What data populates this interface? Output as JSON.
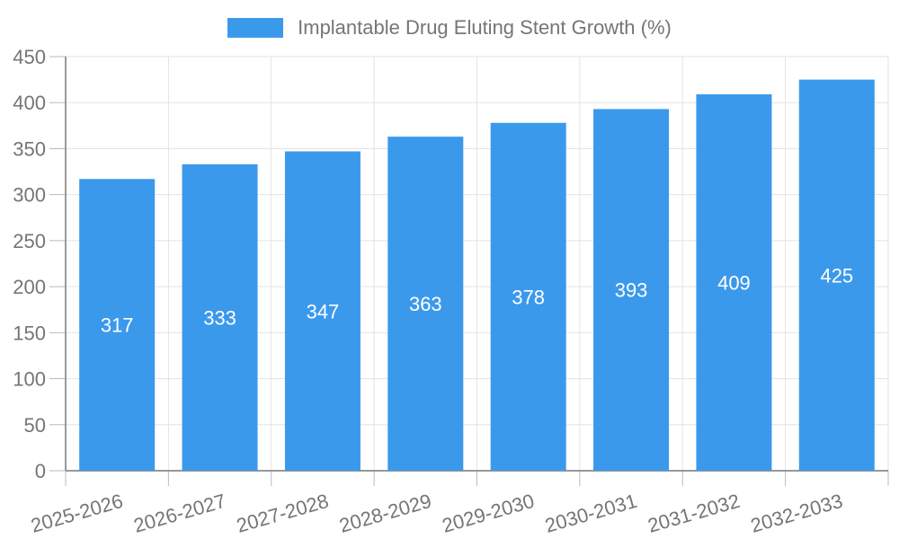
{
  "legend": {
    "label": "Implantable Drug Eluting Stent Growth (%)"
  },
  "chart_data": {
    "type": "bar",
    "title": "Implantable Drug Eluting Stent Growth (%)",
    "categories": [
      "2025-2026",
      "2026-2027",
      "2027-2028",
      "2028-2029",
      "2029-2030",
      "2030-2031",
      "2031-2032",
      "2032-2033"
    ],
    "values": [
      317,
      333,
      347,
      363,
      378,
      393,
      409,
      425
    ],
    "xlabel": "",
    "ylabel": "",
    "ylim": [
      0,
      450
    ],
    "yticks": [
      0,
      50,
      100,
      150,
      200,
      250,
      300,
      350,
      400,
      450
    ],
    "grid": true,
    "legend_position": "top-center",
    "value_label_position": "inside-middle",
    "x_label_rotation_deg": -16
  },
  "style": {
    "bar_color": "#3B99EC",
    "value_label_color": "#FFFFFF",
    "text_color": "#757575",
    "axis_color": "#999999",
    "tick_color": "#BBBBBB",
    "grid_color": "#E3E3E3",
    "background": "#FFFFFF"
  }
}
